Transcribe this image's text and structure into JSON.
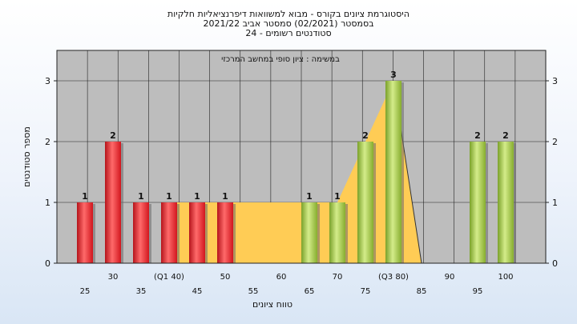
{
  "chart_data": {
    "type": "bar",
    "title_lines": [
      "היסטוגרמת ציונים בקורס - מבוא למשוואות דיפרנציאליות חלקיות",
      "בסמסטר  (02/2021)  סמסטר אביב 2021/22",
      "סטודנטים רשומים - 24"
    ],
    "annotation": "במשימה : ציון סופי במחשב המרכזי",
    "xlabel": "טווח ציונים",
    "ylabel": "מספר סטודנטים",
    "ylim": [
      0,
      3.5
    ],
    "y_ticks": [
      0,
      1,
      2,
      3
    ],
    "grid": true,
    "categories": [
      "25",
      "30",
      "35",
      "(Q1 40)",
      "45",
      "50",
      "55",
      "60",
      "65",
      "70",
      "75",
      "(Q3 80)",
      "85",
      "90",
      "95",
      "100"
    ],
    "values": [
      1,
      2,
      1,
      1,
      1,
      1,
      0,
      0,
      1,
      1,
      2,
      3,
      0,
      0,
      2,
      2
    ],
    "data_labels": [
      "1",
      "2",
      "1",
      "1",
      "1",
      "1",
      "",
      "",
      "1",
      "1",
      "2",
      "3",
      "",
      "",
      "2",
      "2"
    ],
    "bar_groups": [
      "red",
      "red",
      "red",
      "red",
      "red",
      "red",
      "none",
      "none",
      "green",
      "green",
      "green",
      "green",
      "none",
      "none",
      "green",
      "green"
    ],
    "area_series": {
      "x": [
        "(Q1 40)",
        "45",
        "50",
        "55",
        "60",
        "65",
        "70",
        "75",
        "(Q3 80)",
        "85"
      ],
      "values": [
        1,
        1,
        1,
        1,
        1,
        1,
        1,
        2,
        3,
        0
      ]
    },
    "colors": {
      "red_bar": "#e8232a",
      "green_bar": "#9cc43c",
      "area_fill": "#ffcc55",
      "plot_bg": "#bdbdbd",
      "grid": "#111111"
    }
  }
}
